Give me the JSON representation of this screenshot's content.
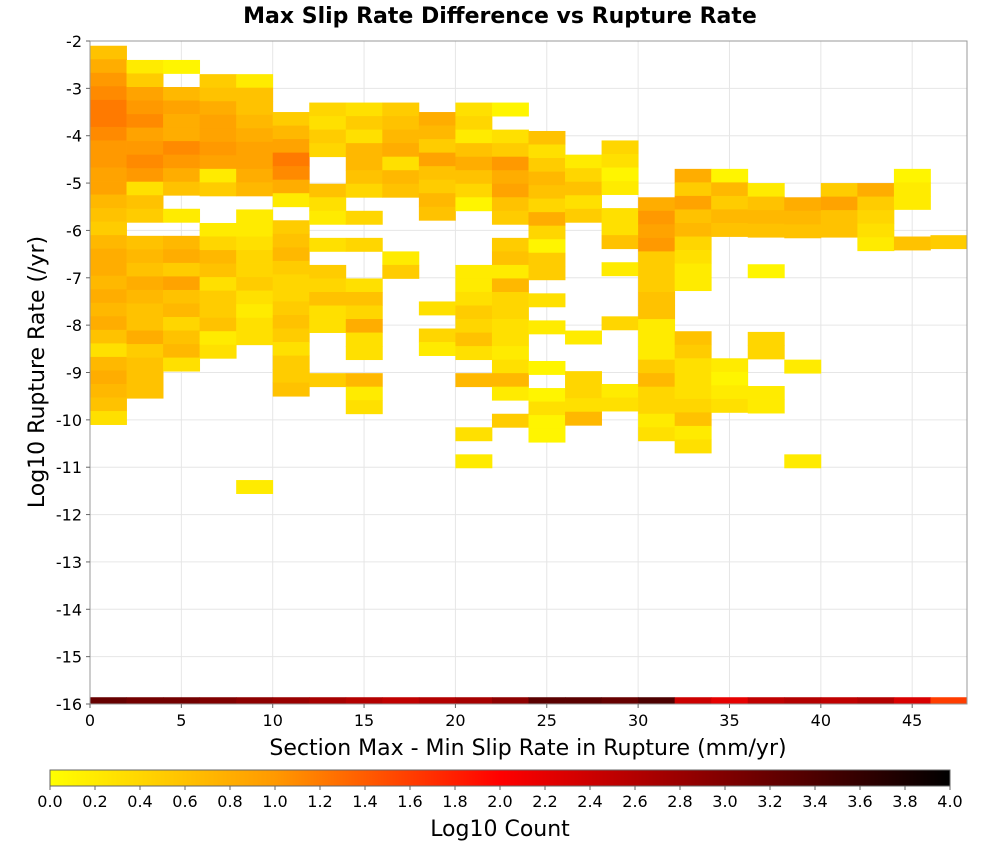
{
  "chart_data": {
    "type": "heatmap",
    "title": "Max Slip Rate Difference vs Rupture Rate",
    "xlabel": "Section Max - Min Slip Rate in Rupture (mm/yr)",
    "ylabel": "Log10 Rupture Rate (/yr)",
    "xlim": [
      0,
      48
    ],
    "ylim": [
      -16,
      -2
    ],
    "x_ticks": [
      "0",
      "5",
      "10",
      "15",
      "20",
      "25",
      "30",
      "35",
      "40",
      "45"
    ],
    "y_ticks": [
      "-2",
      "-3",
      "-4",
      "-5",
      "-6",
      "-7",
      "-8",
      "-9",
      "-10",
      "-11",
      "-12",
      "-13",
      "-14",
      "-15",
      "-16"
    ],
    "cell_width": 2,
    "cell_height": 0.2857,
    "grid": true,
    "colorbar": {
      "label": "Log10 Count",
      "min": 0,
      "max": 4,
      "ticks": [
        "0.0",
        "0.2",
        "0.4",
        "0.6",
        "0.8",
        "1.0",
        "1.2",
        "1.4",
        "1.6",
        "1.8",
        "2.0",
        "2.2",
        "2.4",
        "2.6",
        "2.8",
        "3.0",
        "3.2",
        "3.4",
        "3.6",
        "3.8",
        "4.0"
      ],
      "colors": [
        "#ffff00",
        "#ff9900",
        "#ff0000",
        "#800000",
        "#000000"
      ]
    },
    "columns": [
      {
        "x": 1,
        "y_top": -2.1,
        "values": [
          0.6,
          0.8,
          1.0,
          1.1,
          1.2,
          1.2,
          1.1,
          1.0,
          1.0,
          0.9,
          0.9,
          0.7,
          0.6,
          0.5,
          0.7,
          0.8,
          0.8,
          0.7,
          0.8,
          0.7,
          0.8,
          0.6,
          0.3,
          0.7,
          0.8,
          0.7,
          0.6,
          0.3
        ]
      },
      {
        "x": 3,
        "y_top": -2.4,
        "values": [
          0.2,
          0.5,
          0.9,
          1.0,
          1.1,
          0.9,
          1.0,
          1.1,
          1.0,
          0.3,
          0.6,
          0.5,
          null,
          0.6,
          0.7,
          0.6,
          0.8,
          0.7,
          0.6,
          0.6,
          0.8,
          0.5,
          0.6,
          0.6,
          0.6
        ]
      },
      {
        "x": 5,
        "y_top": -2.4,
        "values": [
          0.1,
          null,
          0.7,
          0.9,
          0.8,
          0.8,
          1.1,
          1.0,
          0.8,
          0.6,
          null,
          0.2,
          null,
          0.7,
          0.8,
          0.5,
          0.9,
          0.6,
          0.7,
          0.4,
          0.6,
          0.7,
          0.3
        ]
      },
      {
        "x": 7,
        "y_top": -2.7,
        "values": [
          0.5,
          0.6,
          0.8,
          0.9,
          0.9,
          1.0,
          0.9,
          0.2,
          0.5,
          null,
          null,
          0.2,
          0.4,
          0.7,
          0.6,
          0.3,
          0.5,
          0.5,
          0.6,
          0.2,
          0.3
        ]
      },
      {
        "x": 9,
        "y_top": -2.7,
        "values": [
          0.2,
          0.6,
          0.6,
          0.7,
          0.8,
          0.9,
          0.9,
          0.8,
          0.7,
          null,
          0.2,
          0.2,
          0.3,
          0.4,
          0.4,
          0.5,
          0.3,
          0.2,
          0.3,
          0.3,
          null,
          null,
          null,
          null,
          null,
          null,
          null,
          null,
          null,
          null,
          0.2
        ]
      },
      {
        "x": 11,
        "y_top": -3.5,
        "values": [
          0.5,
          0.7,
          0.9,
          1.2,
          1.1,
          0.8,
          0.2,
          null,
          0.5,
          0.6,
          0.7,
          0.5,
          0.4,
          0.4,
          0.5,
          0.6,
          0.5,
          0.3,
          0.5,
          0.5,
          0.6
        ]
      },
      {
        "x": 13,
        "y_top": -3.3,
        "values": [
          0.4,
          0.3,
          0.5,
          0.4,
          null,
          null,
          0.6,
          0.3,
          0.2,
          null,
          0.3,
          null,
          0.5,
          0.4,
          0.6,
          0.3,
          0.3,
          null,
          null,
          null,
          0.5
        ]
      },
      {
        "x": 15,
        "y_top": -3.3,
        "values": [
          0.3,
          0.5,
          0.3,
          0.7,
          0.7,
          0.6,
          0.4,
          null,
          0.4,
          null,
          0.4,
          null,
          null,
          0.3,
          0.6,
          0.4,
          0.8,
          0.3,
          0.3,
          null,
          0.7,
          0.2,
          0.3
        ]
      },
      {
        "x": 17,
        "y_top": -3.3,
        "values": [
          0.5,
          0.6,
          0.7,
          0.8,
          0.3,
          0.7,
          0.6,
          null,
          null,
          null,
          null,
          0.2,
          0.5
        ]
      },
      {
        "x": 19,
        "y_top": -3.5,
        "values": [
          0.8,
          0.7,
          0.5,
          0.9,
          0.6,
          0.5,
          0.7,
          0.6,
          null,
          null,
          null,
          null,
          null,
          null,
          0.3,
          null,
          0.4,
          0.2
        ]
      },
      {
        "x": 21,
        "y_top": -3.3,
        "values": [
          0.3,
          0.4,
          0.2,
          0.6,
          0.8,
          0.6,
          0.4,
          0.1,
          null,
          null,
          null,
          null,
          0.2,
          0.2,
          0.3,
          0.5,
          0.4,
          0.6,
          0.3,
          null,
          0.7,
          null,
          null,
          null,
          0.3,
          null,
          0.2
        ]
      },
      {
        "x": 23,
        "y_top": -3.3,
        "values": [
          0.1,
          null,
          0.3,
          0.5,
          1.0,
          0.8,
          0.9,
          0.6,
          0.5,
          null,
          0.5,
          0.6,
          0.2,
          0.7,
          0.4,
          0.4,
          0.3,
          0.3,
          0.2,
          0.3,
          0.7,
          0.2,
          null,
          0.5
        ]
      },
      {
        "x": 25,
        "y_top": -3.9,
        "values": [
          0.6,
          0.3,
          0.5,
          0.7,
          0.6,
          0.4,
          0.8,
          0.4,
          0.1,
          0.5,
          0.5,
          null,
          0.3,
          null,
          0.2,
          null,
          null,
          0.1,
          null,
          0.1,
          0.3,
          0.1,
          0.1
        ]
      },
      {
        "x": 27,
        "y_top": -4.4,
        "values": [
          0.2,
          0.4,
          0.6,
          0.3,
          0.5,
          null,
          null,
          null,
          null,
          null,
          null,
          null,
          null,
          0.2,
          null,
          null,
          0.4,
          0.4,
          0.3,
          0.7
        ]
      },
      {
        "x": 29,
        "y_top": -4.1,
        "values": [
          0.4,
          0.3,
          0.1,
          0.2,
          null,
          0.3,
          0.3,
          0.6,
          null,
          0.2,
          null,
          null,
          null,
          0.4,
          null,
          null,
          null,
          null,
          0.2,
          0.3
        ]
      },
      {
        "x": 31,
        "y_top": -5.3,
        "values": [
          0.8,
          1.0,
          0.9,
          1.0,
          0.5,
          0.5,
          0.5,
          0.6,
          0.6,
          0.2,
          0.2,
          0.2,
          0.5,
          0.7,
          0.4,
          0.4,
          0.2,
          0.3
        ]
      },
      {
        "x": 33,
        "y_top": -4.7,
        "values": [
          0.8,
          0.5,
          0.9,
          0.6,
          0.7,
          0.4,
          0.3,
          0.2,
          0.2,
          null,
          null,
          null,
          0.6,
          0.5,
          0.3,
          0.3,
          0.3,
          0.4,
          0.6,
          0.2,
          0.3
        ]
      },
      {
        "x": 35,
        "y_top": -4.7,
        "values": [
          0.1,
          0.7,
          0.5,
          0.7,
          0.6,
          null,
          null,
          null,
          null,
          null,
          null,
          null,
          null,
          null,
          0.2,
          0.1,
          0.2,
          0.3
        ]
      },
      {
        "x": 37,
        "y_top": -5.0,
        "values": [
          0.2,
          0.6,
          0.7,
          0.6,
          null,
          null,
          0.1,
          null,
          null,
          null,
          null,
          0.4,
          0.4,
          null,
          null,
          0.2,
          0.2
        ]
      },
      {
        "x": 39,
        "y_top": -5.3,
        "values": [
          0.8,
          0.7,
          0.6,
          null,
          null,
          null,
          null,
          null,
          null,
          null,
          null,
          null,
          0.2,
          null,
          null,
          null,
          null,
          null,
          null,
          0.2
        ]
      },
      {
        "x": 41,
        "y_top": -5.0,
        "values": [
          0.5,
          0.9,
          0.6,
          0.6
        ]
      },
      {
        "x": 43,
        "y_top": -5.0,
        "values": [
          0.8,
          0.5,
          0.4,
          0.3,
          0.2
        ]
      },
      {
        "x": 45,
        "y_top": -4.7,
        "values": [
          0.1,
          0.2,
          0.2,
          null,
          null,
          0.6
        ]
      },
      {
        "x": 47,
        "y_top": -6.1,
        "values": [
          0.5
        ]
      }
    ],
    "bottom_row": {
      "y": -16,
      "x": [
        1,
        3,
        5,
        7,
        9,
        11,
        13,
        15,
        17,
        19,
        21,
        23,
        25,
        27,
        29,
        31,
        33,
        35,
        37,
        39,
        41,
        43,
        45,
        47
      ],
      "values": [
        3.2,
        3.1,
        3.1,
        3.0,
        2.9,
        2.8,
        2.7,
        2.6,
        2.5,
        2.6,
        2.7,
        2.9,
        3.3,
        3.3,
        3.2,
        3.4,
        2.4,
        2.2,
        2.5,
        2.6,
        2.5,
        2.6,
        2.3,
        1.6
      ]
    }
  }
}
